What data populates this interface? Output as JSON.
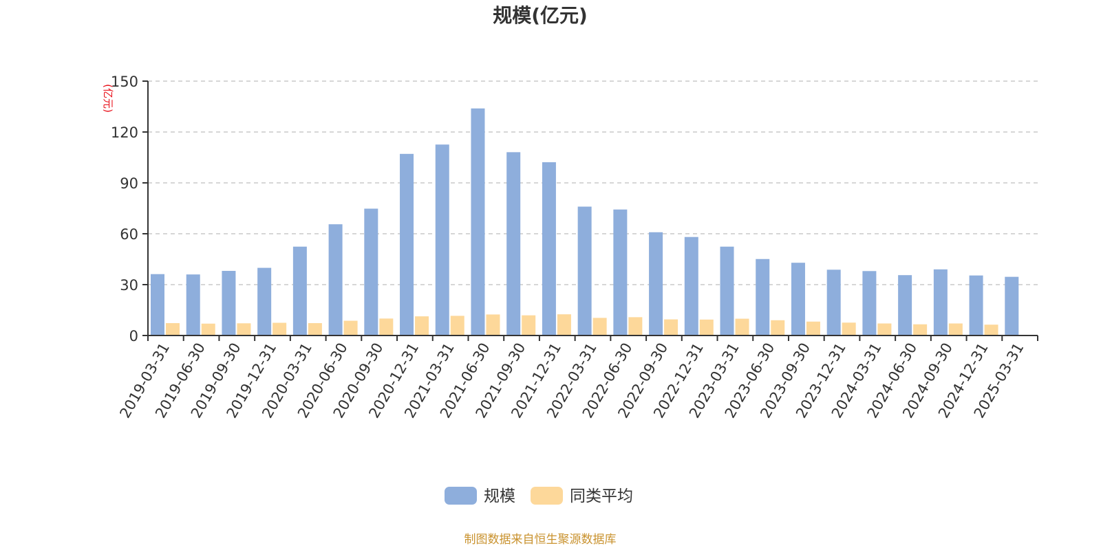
{
  "chart_data": {
    "type": "bar",
    "title": "规模(亿元)",
    "ylabel": "(亿元)",
    "ylim": [
      0,
      150
    ],
    "yticks": [
      "0",
      "30",
      "60",
      "90",
      "120",
      "150"
    ],
    "grid": true,
    "legend_position": "bottom-center",
    "categories": [
      "2019-03-31",
      "2019-06-30",
      "2019-09-30",
      "2019-12-31",
      "2020-03-31",
      "2020-06-30",
      "2020-09-30",
      "2020-12-31",
      "2021-03-31",
      "2021-06-30",
      "2021-09-30",
      "2021-12-31",
      "2022-03-31",
      "2022-06-30",
      "2022-09-30",
      "2022-12-31",
      "2023-03-31",
      "2023-06-30",
      "2023-09-30",
      "2023-12-31",
      "2024-03-31",
      "2024-06-30",
      "2024-09-30",
      "2024-12-31",
      "2025-03-31"
    ],
    "series": [
      {
        "name": "规模",
        "color": "#8eaedc",
        "values": [
          36.2,
          36.0,
          38.1,
          39.9,
          52.4,
          65.6,
          74.8,
          107.1,
          112.6,
          133.9,
          108.1,
          102.2,
          76.0,
          74.3,
          60.9,
          58.1,
          52.4,
          45.1,
          42.9,
          38.8,
          38.0,
          35.6,
          39.0,
          35.4,
          34.6
        ]
      },
      {
        "name": "同类平均",
        "color": "#fdd89a",
        "values": [
          7.3,
          7.0,
          7.2,
          7.5,
          7.3,
          8.7,
          10.0,
          11.3,
          11.6,
          12.4,
          11.9,
          12.5,
          10.4,
          10.8,
          9.5,
          9.4,
          9.9,
          9.0,
          8.2,
          7.6,
          7.1,
          6.6,
          7.1,
          6.4,
          null
        ]
      }
    ],
    "source": "制图数据来自恒生聚源数据库"
  }
}
